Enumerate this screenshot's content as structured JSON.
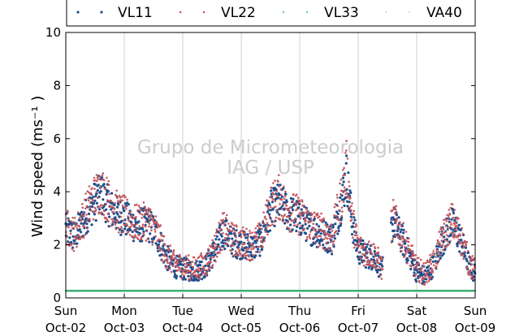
{
  "chart_data": {
    "type": "scatter",
    "title": "",
    "xlabel": "",
    "ylabel": "Wind speed (ms⁻¹ )",
    "ylim": [
      0,
      10
    ],
    "yticks": [
      "0",
      "2",
      "4",
      "6",
      "8",
      "10"
    ],
    "x_tick_labels": [
      {
        "day": "Sun",
        "date": "Oct-02"
      },
      {
        "day": "Mon",
        "date": "Oct-03"
      },
      {
        "day": "Tue",
        "date": "Oct-04"
      },
      {
        "day": "Wed",
        "date": "Oct-05"
      },
      {
        "day": "Thu",
        "date": "Oct-06"
      },
      {
        "day": "Fri",
        "date": "Oct-07"
      },
      {
        "day": "Sat",
        "date": "Oct-08"
      },
      {
        "day": "Sun",
        "date": "Oct-09"
      }
    ],
    "grid": "vertical",
    "legend_position": "top",
    "watermark": [
      "Grupo de Micrometeorologia",
      "IAG / USP"
    ],
    "series": [
      {
        "name": "VL11",
        "color": "#1f4e8c",
        "profile_day_values": [
          [
            0,
            2.6
          ],
          [
            0.15,
            2.3
          ],
          [
            0.3,
            2.9
          ],
          [
            0.45,
            3.5
          ],
          [
            0.6,
            3.9
          ],
          [
            0.75,
            3.4
          ],
          [
            0.9,
            3.1
          ],
          [
            1.0,
            3.0
          ],
          [
            1.2,
            2.7
          ],
          [
            1.4,
            2.8
          ],
          [
            1.55,
            2.4
          ],
          [
            1.7,
            1.6
          ],
          [
            1.85,
            1.2
          ],
          [
            2.0,
            1.1
          ],
          [
            2.2,
            1.0
          ],
          [
            2.4,
            1.2
          ],
          [
            2.55,
            1.8
          ],
          [
            2.7,
            2.5
          ],
          [
            2.85,
            2.1
          ],
          [
            3.0,
            2.0
          ],
          [
            3.2,
            1.9
          ],
          [
            3.35,
            2.2
          ],
          [
            3.5,
            3.3
          ],
          [
            3.65,
            3.6
          ],
          [
            3.8,
            3.2
          ],
          [
            4.0,
            3.0
          ],
          [
            4.2,
            2.6
          ],
          [
            4.4,
            2.4
          ],
          [
            4.55,
            2.2
          ],
          [
            4.7,
            3.5
          ],
          [
            4.8,
            4.6
          ],
          [
            4.9,
            2.8
          ],
          [
            5.0,
            1.8
          ],
          [
            5.15,
            1.6
          ],
          [
            5.3,
            1.5
          ],
          [
            5.4,
            1.0
          ],
          [
            5.6,
            2.9
          ],
          [
            5.75,
            2.2
          ],
          [
            5.9,
            1.5
          ],
          [
            6.0,
            1.0
          ],
          [
            6.15,
            0.8
          ],
          [
            6.3,
            1.3
          ],
          [
            6.45,
            2.2
          ],
          [
            6.6,
            2.8
          ],
          [
            6.75,
            2.2
          ],
          [
            6.9,
            1.2
          ],
          [
            7.0,
            0.9
          ]
        ]
      },
      {
        "name": "VL22",
        "color": "#c8585e",
        "profile_day_values": [
          [
            0,
            2.7
          ],
          [
            0.15,
            2.4
          ],
          [
            0.3,
            3.0
          ],
          [
            0.45,
            3.7
          ],
          [
            0.6,
            4.1
          ],
          [
            0.75,
            3.6
          ],
          [
            0.9,
            3.2
          ],
          [
            1.0,
            3.1
          ],
          [
            1.2,
            2.8
          ],
          [
            1.4,
            2.9
          ],
          [
            1.55,
            2.5
          ],
          [
            1.7,
            1.7
          ],
          [
            1.85,
            1.3
          ],
          [
            2.0,
            1.2
          ],
          [
            2.2,
            1.1
          ],
          [
            2.4,
            1.3
          ],
          [
            2.55,
            1.9
          ],
          [
            2.7,
            2.6
          ],
          [
            2.85,
            2.2
          ],
          [
            3.0,
            2.1
          ],
          [
            3.2,
            2.0
          ],
          [
            3.35,
            2.3
          ],
          [
            3.5,
            3.5
          ],
          [
            3.65,
            3.8
          ],
          [
            3.8,
            3.3
          ],
          [
            4.0,
            3.1
          ],
          [
            4.2,
            2.7
          ],
          [
            4.4,
            2.5
          ],
          [
            4.55,
            2.3
          ],
          [
            4.7,
            3.7
          ],
          [
            4.8,
            4.9
          ],
          [
            4.9,
            2.9
          ],
          [
            5.0,
            1.9
          ],
          [
            5.15,
            1.7
          ],
          [
            5.3,
            1.6
          ],
          [
            5.4,
            1.1
          ],
          [
            5.6,
            3.0
          ],
          [
            5.75,
            2.3
          ],
          [
            5.9,
            1.6
          ],
          [
            6.0,
            1.1
          ],
          [
            6.15,
            0.9
          ],
          [
            6.3,
            1.4
          ],
          [
            6.45,
            2.3
          ],
          [
            6.6,
            2.9
          ],
          [
            6.75,
            2.3
          ],
          [
            6.9,
            1.3
          ],
          [
            7.0,
            1.0
          ]
        ]
      },
      {
        "name": "VL33",
        "color": "#3fae75",
        "profile_day_values": [
          [
            0,
            0.27
          ],
          [
            5.4,
            0.27
          ],
          [
            5.55,
            0.27
          ],
          [
            7.0,
            0.27
          ]
        ]
      },
      {
        "name": "VA40",
        "color": "#e5a08a",
        "profile_day_values": [
          [
            6.2,
            1.3
          ],
          [
            6.5,
            2.4
          ],
          [
            6.7,
            2.6
          ]
        ]
      }
    ]
  }
}
